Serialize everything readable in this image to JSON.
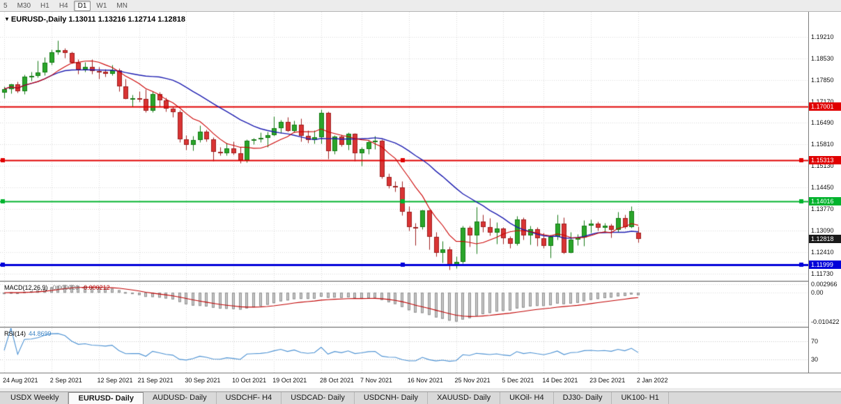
{
  "toolbar": {
    "timeframes": [
      {
        "label": "5",
        "active": false
      },
      {
        "label": "M30",
        "active": false
      },
      {
        "label": "H1",
        "active": false
      },
      {
        "label": "H4",
        "active": false
      },
      {
        "label": "D1",
        "active": true
      },
      {
        "label": "W1",
        "active": false
      },
      {
        "label": "MN",
        "active": false
      }
    ]
  },
  "chart": {
    "arrow": "▼",
    "symbol": "EURUSD-,Daily",
    "ohlc": "1.13011 1.13216 1.12714 1.12818"
  },
  "price_axis": {
    "ticks": [
      {
        "text": "1.19210",
        "value": 1.1921
      },
      {
        "text": "1.18530",
        "value": 1.1853
      },
      {
        "text": "1.17850",
        "value": 1.1785
      },
      {
        "text": "1.17170",
        "value": 1.1717
      },
      {
        "text": "1.16490",
        "value": 1.1649
      },
      {
        "text": "1.15810",
        "value": 1.1581
      },
      {
        "text": "1.15130",
        "value": 1.1513
      },
      {
        "text": "1.14450",
        "value": 1.1445
      },
      {
        "text": "1.13770",
        "value": 1.1377
      },
      {
        "text": "1.13090",
        "value": 1.1309
      },
      {
        "text": "1.12410",
        "value": 1.1241
      },
      {
        "text": "1.11730",
        "value": 1.1173
      }
    ],
    "badges": [
      {
        "text": "1.17001",
        "value": 1.17001,
        "color": "#e00000"
      },
      {
        "text": "1.15313",
        "value": 1.15313,
        "color": "#e00000"
      },
      {
        "text": "1.14016",
        "value": 1.14016,
        "color": "#00b32d"
      },
      {
        "text": "1.12818",
        "value": 1.12818,
        "color": "#1a1a1a"
      },
      {
        "text": "1.11999",
        "value": 1.11999,
        "color": "#0000d9"
      }
    ]
  },
  "macd": {
    "name": "MACD(12,26,9)",
    "value_main": "-0.000020",
    "value_signal": "-0.000212",
    "ticks": [
      {
        "text": "0.002966",
        "value": 0.002966
      },
      {
        "text": "0.00",
        "value": 0
      },
      {
        "text": "-0.010422",
        "value": -0.010422
      }
    ]
  },
  "rsi": {
    "name": "RSI(14)",
    "value": "44.8699",
    "ticks": [
      {
        "text": "70",
        "value": 70
      },
      {
        "text": "30",
        "value": 30
      }
    ]
  },
  "date_axis": {
    "labels": [
      "24 Aug 2021",
      "2 Sep 2021",
      "12 Sep 2021",
      "21 Sep 2021",
      "30 Sep 2021",
      "10 Oct 2021",
      "19 Oct 2021",
      "28 Oct 2021",
      "7 Nov 2021",
      "16 Nov 2021",
      "25 Nov 2021",
      "5 Dec 2021",
      "14 Dec 2021",
      "23 Dec 2021",
      "2 Jan 2022"
    ],
    "tick_indices": [
      0,
      7,
      14,
      20,
      27,
      34,
      40,
      47,
      53,
      60,
      67,
      74,
      80,
      87,
      94
    ]
  },
  "tabs": [
    {
      "label": "USDX Weekly",
      "active": false
    },
    {
      "label": "EURUSD- Daily",
      "active": true
    },
    {
      "label": "AUDUSD- Daily",
      "active": false
    },
    {
      "label": "USDCHF- H4",
      "active": false
    },
    {
      "label": "USDCAD- Daily",
      "active": false
    },
    {
      "label": "USDCNH- Daily",
      "active": false
    },
    {
      "label": "XAUUSD- Daily",
      "active": false
    },
    {
      "label": "UKOil- H4",
      "active": false
    },
    {
      "label": "DJ30- Daily",
      "active": false
    },
    {
      "label": "UK100- H1",
      "active": false
    }
  ],
  "chart_data": {
    "type": "candlestick",
    "symbol": "EURUSD-",
    "timeframe": "Daily",
    "current_bar": {
      "open": 1.13011,
      "high": 1.13216,
      "low": 1.12714,
      "close": 1.12818
    },
    "indicators": {
      "macd_label": "MACD(12,26,9)",
      "macd_values": [
        -2e-05,
        -0.000212
      ],
      "rsi_label": "RSI(14)",
      "rsi_value": 44.8699
    },
    "price_range": {
      "min": 1.115,
      "max": 1.2
    },
    "macd_range": {
      "max": 0.0038,
      "min": -0.0122
    },
    "ma_fast_period": 8,
    "ma_slow_period": 21,
    "hlines": [
      {
        "price": 1.17001,
        "color": "#e00000",
        "width": 2,
        "handles": false
      },
      {
        "price": 1.15313,
        "color": "#e00000",
        "width": 2,
        "handles": true
      },
      {
        "price": 1.14016,
        "color": "#00b32d",
        "width": 2,
        "handles": true
      },
      {
        "price": 1.11999,
        "color": "#0000d9",
        "width": 3,
        "handles": true
      }
    ],
    "colors": {
      "up": "#2aa52a",
      "up_border": "#157a15",
      "down": "#d93434",
      "down_border": "#9e1f1f",
      "ma_fast": "#cc0000",
      "ma_slow": "#1c1cb0",
      "macd_hist": "#c6c6c6",
      "macd_hist_border": "#8f8f8f",
      "macd_signal": "#c00000",
      "rsi": "#4a90d2",
      "grid": "#d8d8d8"
    },
    "candles": [
      [
        1.1745,
        1.1765,
        1.1727,
        1.1756
      ],
      [
        1.1756,
        1.1774,
        1.1743,
        1.177
      ],
      [
        1.177,
        1.1779,
        1.1745,
        1.175
      ],
      [
        1.175,
        1.1802,
        1.174,
        1.1795
      ],
      [
        1.1795,
        1.181,
        1.1782,
        1.1797
      ],
      [
        1.1797,
        1.1845,
        1.1793,
        1.1809
      ],
      [
        1.1809,
        1.1857,
        1.18,
        1.184
      ],
      [
        1.184,
        1.188,
        1.1833,
        1.1873
      ],
      [
        1.1873,
        1.1909,
        1.1865,
        1.1879
      ],
      [
        1.1879,
        1.1885,
        1.1855,
        1.187
      ],
      [
        1.187,
        1.1875,
        1.1838,
        1.184
      ],
      [
        1.184,
        1.1851,
        1.1805,
        1.1817
      ],
      [
        1.1817,
        1.1842,
        1.181,
        1.1825
      ],
      [
        1.1825,
        1.1851,
        1.1805,
        1.1813
      ],
      [
        1.1813,
        1.1826,
        1.1789,
        1.181
      ],
      [
        1.181,
        1.182,
        1.1795,
        1.1805
      ],
      [
        1.1805,
        1.1832,
        1.18,
        1.1816
      ],
      [
        1.1816,
        1.1821,
        1.175,
        1.1765
      ],
      [
        1.1765,
        1.1788,
        1.1724,
        1.1725
      ],
      [
        1.1725,
        1.1738,
        1.17,
        1.1726
      ],
      [
        1.1726,
        1.1749,
        1.1715,
        1.1725
      ],
      [
        1.1725,
        1.1756,
        1.1684,
        1.1687
      ],
      [
        1.1687,
        1.175,
        1.1683,
        1.174
      ],
      [
        1.174,
        1.1747,
        1.1701,
        1.172
      ],
      [
        1.172,
        1.173,
        1.1685,
        1.1695
      ],
      [
        1.1695,
        1.17,
        1.1668,
        1.1683
      ],
      [
        1.1683,
        1.169,
        1.1589,
        1.1597
      ],
      [
        1.1597,
        1.161,
        1.1563,
        1.1579
      ],
      [
        1.1579,
        1.1608,
        1.1562,
        1.1595
      ],
      [
        1.1595,
        1.164,
        1.1588,
        1.1621
      ],
      [
        1.1621,
        1.1627,
        1.1591,
        1.1598
      ],
      [
        1.1598,
        1.1603,
        1.1529,
        1.1557
      ],
      [
        1.1557,
        1.1572,
        1.1546,
        1.1552
      ],
      [
        1.1552,
        1.1586,
        1.1546,
        1.1568
      ],
      [
        1.1568,
        1.1591,
        1.1549,
        1.1553
      ],
      [
        1.1553,
        1.1572,
        1.1522,
        1.1531
      ],
      [
        1.1531,
        1.1597,
        1.1525,
        1.1593
      ],
      [
        1.1593,
        1.1601,
        1.1582,
        1.1597
      ],
      [
        1.1597,
        1.1619,
        1.1588,
        1.1601
      ],
      [
        1.1601,
        1.1622,
        1.1572,
        1.161
      ],
      [
        1.161,
        1.167,
        1.1609,
        1.1633
      ],
      [
        1.1633,
        1.1659,
        1.1617,
        1.1652
      ],
      [
        1.1652,
        1.1667,
        1.1621,
        1.1624
      ],
      [
        1.1624,
        1.1656,
        1.162,
        1.1644
      ],
      [
        1.1644,
        1.1664,
        1.159,
        1.1608
      ],
      [
        1.1608,
        1.1626,
        1.1585,
        1.1595
      ],
      [
        1.1595,
        1.1626,
        1.1583,
        1.1603
      ],
      [
        1.1603,
        1.1692,
        1.1583,
        1.1681
      ],
      [
        1.1681,
        1.1686,
        1.1535,
        1.156
      ],
      [
        1.156,
        1.161,
        1.155,
        1.1606
      ],
      [
        1.1606,
        1.1613,
        1.1575,
        1.158
      ],
      [
        1.158,
        1.162,
        1.1565,
        1.1614
      ],
      [
        1.1614,
        1.1617,
        1.1528,
        1.1554
      ],
      [
        1.1554,
        1.1573,
        1.1513,
        1.1567
      ],
      [
        1.1567,
        1.1594,
        1.1551,
        1.1588
      ],
      [
        1.1588,
        1.1609,
        1.1567,
        1.1593
      ],
      [
        1.1593,
        1.1597,
        1.1474,
        1.1479
      ],
      [
        1.1479,
        1.1489,
        1.1442,
        1.145
      ],
      [
        1.145,
        1.1464,
        1.1432,
        1.1445
      ],
      [
        1.1445,
        1.1464,
        1.1356,
        1.1369
      ],
      [
        1.1369,
        1.1386,
        1.1308,
        1.132
      ],
      [
        1.132,
        1.1332,
        1.1263,
        1.1319
      ],
      [
        1.1319,
        1.1374,
        1.1312,
        1.1372
      ],
      [
        1.1372,
        1.1374,
        1.125,
        1.1289
      ],
      [
        1.1289,
        1.1305,
        1.1226,
        1.1237
      ],
      [
        1.1237,
        1.1275,
        1.1207,
        1.125
      ],
      [
        1.125,
        1.1258,
        1.1186,
        1.12
      ],
      [
        1.12,
        1.1227,
        1.119,
        1.121
      ],
      [
        1.121,
        1.1323,
        1.1205,
        1.1317
      ],
      [
        1.1317,
        1.1324,
        1.1258,
        1.1293
      ],
      [
        1.1293,
        1.1383,
        1.1236,
        1.1338
      ],
      [
        1.1338,
        1.1359,
        1.1305,
        1.132
      ],
      [
        1.132,
        1.1348,
        1.1294,
        1.1302
      ],
      [
        1.1302,
        1.1334,
        1.1266,
        1.1316
      ],
      [
        1.1316,
        1.132,
        1.1267,
        1.1285
      ],
      [
        1.1285,
        1.1291,
        1.1253,
        1.1266
      ],
      [
        1.1266,
        1.1355,
        1.1263,
        1.1344
      ],
      [
        1.1344,
        1.135,
        1.128,
        1.1294
      ],
      [
        1.1294,
        1.1324,
        1.1264,
        1.1314
      ],
      [
        1.1314,
        1.1319,
        1.126,
        1.1285
      ],
      [
        1.1285,
        1.1303,
        1.1254,
        1.126
      ],
      [
        1.126,
        1.1296,
        1.1222,
        1.1288
      ],
      [
        1.1288,
        1.136,
        1.128,
        1.1331
      ],
      [
        1.1331,
        1.135,
        1.1236,
        1.1239
      ],
      [
        1.1239,
        1.1304,
        1.1237,
        1.1281
      ],
      [
        1.1281,
        1.1298,
        1.1262,
        1.1287
      ],
      [
        1.1287,
        1.1342,
        1.1261,
        1.1324
      ],
      [
        1.1324,
        1.1344,
        1.1301,
        1.133
      ],
      [
        1.133,
        1.1337,
        1.1308,
        1.1318
      ],
      [
        1.1318,
        1.1333,
        1.1304,
        1.1325
      ],
      [
        1.1325,
        1.1331,
        1.1287,
        1.131
      ],
      [
        1.131,
        1.1369,
        1.1304,
        1.1348
      ],
      [
        1.1348,
        1.136,
        1.1316,
        1.132
      ],
      [
        1.132,
        1.1386,
        1.1317,
        1.137
      ],
      [
        1.13011,
        1.13216,
        1.12714,
        1.12818
      ]
    ]
  }
}
